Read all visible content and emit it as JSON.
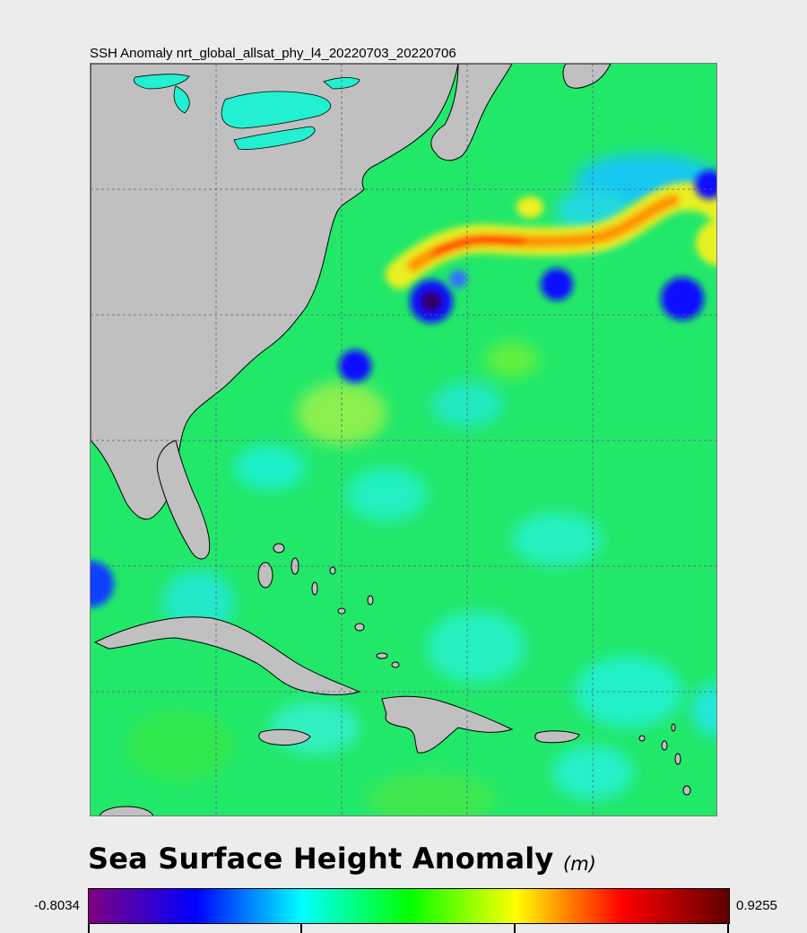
{
  "map": {
    "title": "SSH Anomaly nrt_global_allsat_phy_l4_20220703_20220706"
  },
  "legend": {
    "title": "Sea Surface Height Anomaly",
    "unit": "(m)",
    "min_label": "-0.8034",
    "max_label": "0.9255",
    "colormap": [
      "#800080",
      "#0000ff",
      "#00ffff",
      "#00ff00",
      "#ffff00",
      "#ff0000",
      "#600000"
    ]
  },
  "colors": {
    "land": "#c0c0c0",
    "ocean_base": "#22e86a",
    "coastline": "#000000",
    "gridline": "#5a5a8a"
  }
}
